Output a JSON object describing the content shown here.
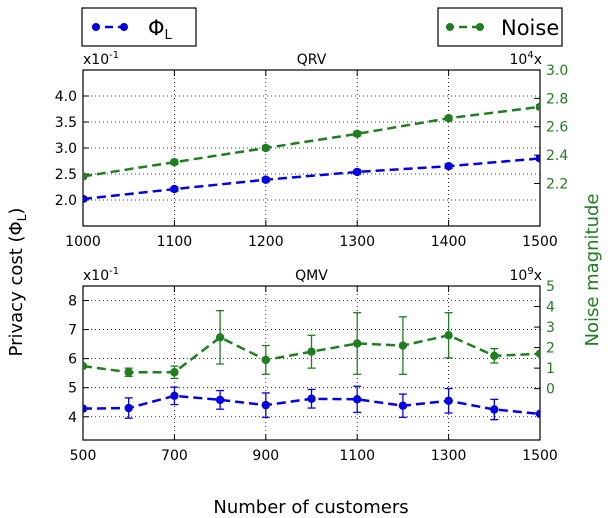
{
  "legend": {
    "left": {
      "label_main": "Φ",
      "label_sub": "L",
      "color": "#0000ee"
    },
    "right": {
      "label": "Noise",
      "color": "#1e7f1e"
    }
  },
  "axis_labels": {
    "y_left_main": "Privacy cost (Φ",
    "y_left_sub": "L",
    "y_left_close": ")",
    "y_right": "Noise magnitude",
    "x": "Number of customers"
  },
  "colors": {
    "phi": "#0000ee",
    "noise": "#1e7f1e"
  },
  "chart_data": [
    {
      "type": "line",
      "title": "QRV",
      "multiplier_left_base": "x10",
      "multiplier_left_exp": "-1",
      "multiplier_right_base": "10",
      "multiplier_right_exp": "4",
      "multiplier_right_suffix": "x",
      "x": [
        1000,
        1100,
        1200,
        1300,
        1400,
        1500
      ],
      "xlim": [
        1000,
        1500
      ],
      "xticks": [
        1000,
        1100,
        1200,
        1300,
        1400,
        1500
      ],
      "ylim_left": [
        1.5,
        4.5
      ],
      "yticks_left": [
        "2.0",
        "2.5",
        "3.0",
        "3.5",
        "4.0"
      ],
      "ylim_right": [
        1.9,
        3.0
      ],
      "yticks_right": [
        "2.2",
        "2.4",
        "2.6",
        "2.8",
        "3.0"
      ],
      "grid": true,
      "series": [
        {
          "name": "Φ_L",
          "axis": "left",
          "values": [
            2.02,
            2.21,
            2.39,
            2.54,
            2.65,
            2.8
          ],
          "err": [
            0.04,
            0.04,
            0.04,
            0.04,
            0.04,
            0.04
          ]
        },
        {
          "name": "Noise",
          "axis": "right",
          "values": [
            2.25,
            2.35,
            2.45,
            2.55,
            2.66,
            2.74
          ],
          "err": [
            0.015,
            0.015,
            0.015,
            0.015,
            0.015,
            0.015
          ]
        }
      ]
    },
    {
      "type": "line",
      "title": "QMV",
      "multiplier_left_base": "x10",
      "multiplier_left_exp": "-1",
      "multiplier_right_base": "10",
      "multiplier_right_exp": "9",
      "multiplier_right_suffix": "x",
      "x": [
        500,
        600,
        700,
        800,
        900,
        1000,
        1100,
        1200,
        1300,
        1400,
        1500
      ],
      "xlim": [
        500,
        1500
      ],
      "xticks": [
        500,
        700,
        900,
        1100,
        1300,
        1500
      ],
      "ylim_left": [
        3.2,
        8.5
      ],
      "yticks_left": [
        "4",
        "5",
        "6",
        "7",
        "8"
      ],
      "ylim_right": [
        -2.5,
        5
      ],
      "yticks_right": [
        "0",
        "1",
        "2",
        "3",
        "4",
        "5"
      ],
      "grid": true,
      "series": [
        {
          "name": "Φ_L",
          "axis": "left",
          "values": [
            4.28,
            4.3,
            4.72,
            4.58,
            4.4,
            4.62,
            4.6,
            4.38,
            4.55,
            4.25,
            4.1
          ],
          "err": [
            0.0,
            0.35,
            0.3,
            0.32,
            0.42,
            0.32,
            0.45,
            0.4,
            0.42,
            0.35,
            0.0
          ]
        },
        {
          "name": "Noise",
          "axis": "right",
          "values": [
            1.1,
            0.8,
            0.8,
            2.5,
            1.4,
            1.8,
            2.2,
            2.1,
            2.6,
            1.6,
            1.7
          ],
          "err": [
            0.0,
            0.2,
            0.3,
            1.3,
            0.7,
            0.8,
            1.5,
            1.4,
            1.1,
            0.35,
            0.0
          ]
        }
      ]
    }
  ]
}
